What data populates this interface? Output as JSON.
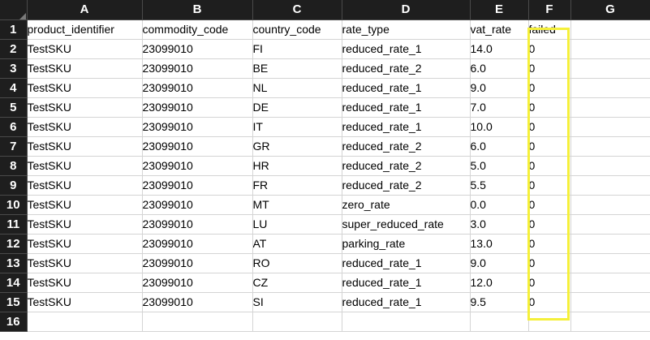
{
  "columns": [
    "A",
    "B",
    "C",
    "D",
    "E",
    "F",
    "G"
  ],
  "rows": [
    {
      "num": "1",
      "cells": [
        "product_identifier",
        "commodity_code",
        "country_code",
        "rate_type",
        "vat_rate",
        "failed",
        ""
      ]
    },
    {
      "num": "2",
      "cells": [
        "TestSKU",
        "23099010",
        "FI",
        "reduced_rate_1",
        "14.0",
        "0",
        ""
      ]
    },
    {
      "num": "3",
      "cells": [
        "TestSKU",
        "23099010",
        "BE",
        "reduced_rate_2",
        "6.0",
        "0",
        ""
      ]
    },
    {
      "num": "4",
      "cells": [
        "TestSKU",
        "23099010",
        "NL",
        "reduced_rate_1",
        "9.0",
        "0",
        ""
      ]
    },
    {
      "num": "5",
      "cells": [
        "TestSKU",
        "23099010",
        "DE",
        "reduced_rate_1",
        "7.0",
        "0",
        ""
      ]
    },
    {
      "num": "6",
      "cells": [
        "TestSKU",
        "23099010",
        "IT",
        "reduced_rate_1",
        "10.0",
        "0",
        ""
      ]
    },
    {
      "num": "7",
      "cells": [
        "TestSKU",
        "23099010",
        "GR",
        "reduced_rate_2",
        "6.0",
        "0",
        ""
      ]
    },
    {
      "num": "8",
      "cells": [
        "TestSKU",
        "23099010",
        "HR",
        "reduced_rate_2",
        "5.0",
        "0",
        ""
      ]
    },
    {
      "num": "9",
      "cells": [
        "TestSKU",
        "23099010",
        "FR",
        "reduced_rate_2",
        "5.5",
        "0",
        ""
      ]
    },
    {
      "num": "10",
      "cells": [
        "TestSKU",
        "23099010",
        "MT",
        "zero_rate",
        "0.0",
        "0",
        ""
      ]
    },
    {
      "num": "11",
      "cells": [
        "TestSKU",
        "23099010",
        "LU",
        "super_reduced_rate",
        "3.0",
        "0",
        ""
      ]
    },
    {
      "num": "12",
      "cells": [
        "TestSKU",
        "23099010",
        "AT",
        "parking_rate",
        "13.0",
        "0",
        ""
      ]
    },
    {
      "num": "13",
      "cells": [
        "TestSKU",
        "23099010",
        "RO",
        "reduced_rate_1",
        "9.0",
        "0",
        ""
      ]
    },
    {
      "num": "14",
      "cells": [
        "TestSKU",
        "23099010",
        "CZ",
        "reduced_rate_1",
        "12.0",
        "0",
        ""
      ]
    },
    {
      "num": "15",
      "cells": [
        "TestSKU",
        "23099010",
        "SI",
        "reduced_rate_1",
        "9.5",
        "0",
        ""
      ]
    },
    {
      "num": "16",
      "cells": [
        "",
        "",
        "",
        "",
        "",
        "",
        ""
      ]
    }
  ],
  "highlight": {
    "column": "F",
    "color": "#f5f03a"
  }
}
